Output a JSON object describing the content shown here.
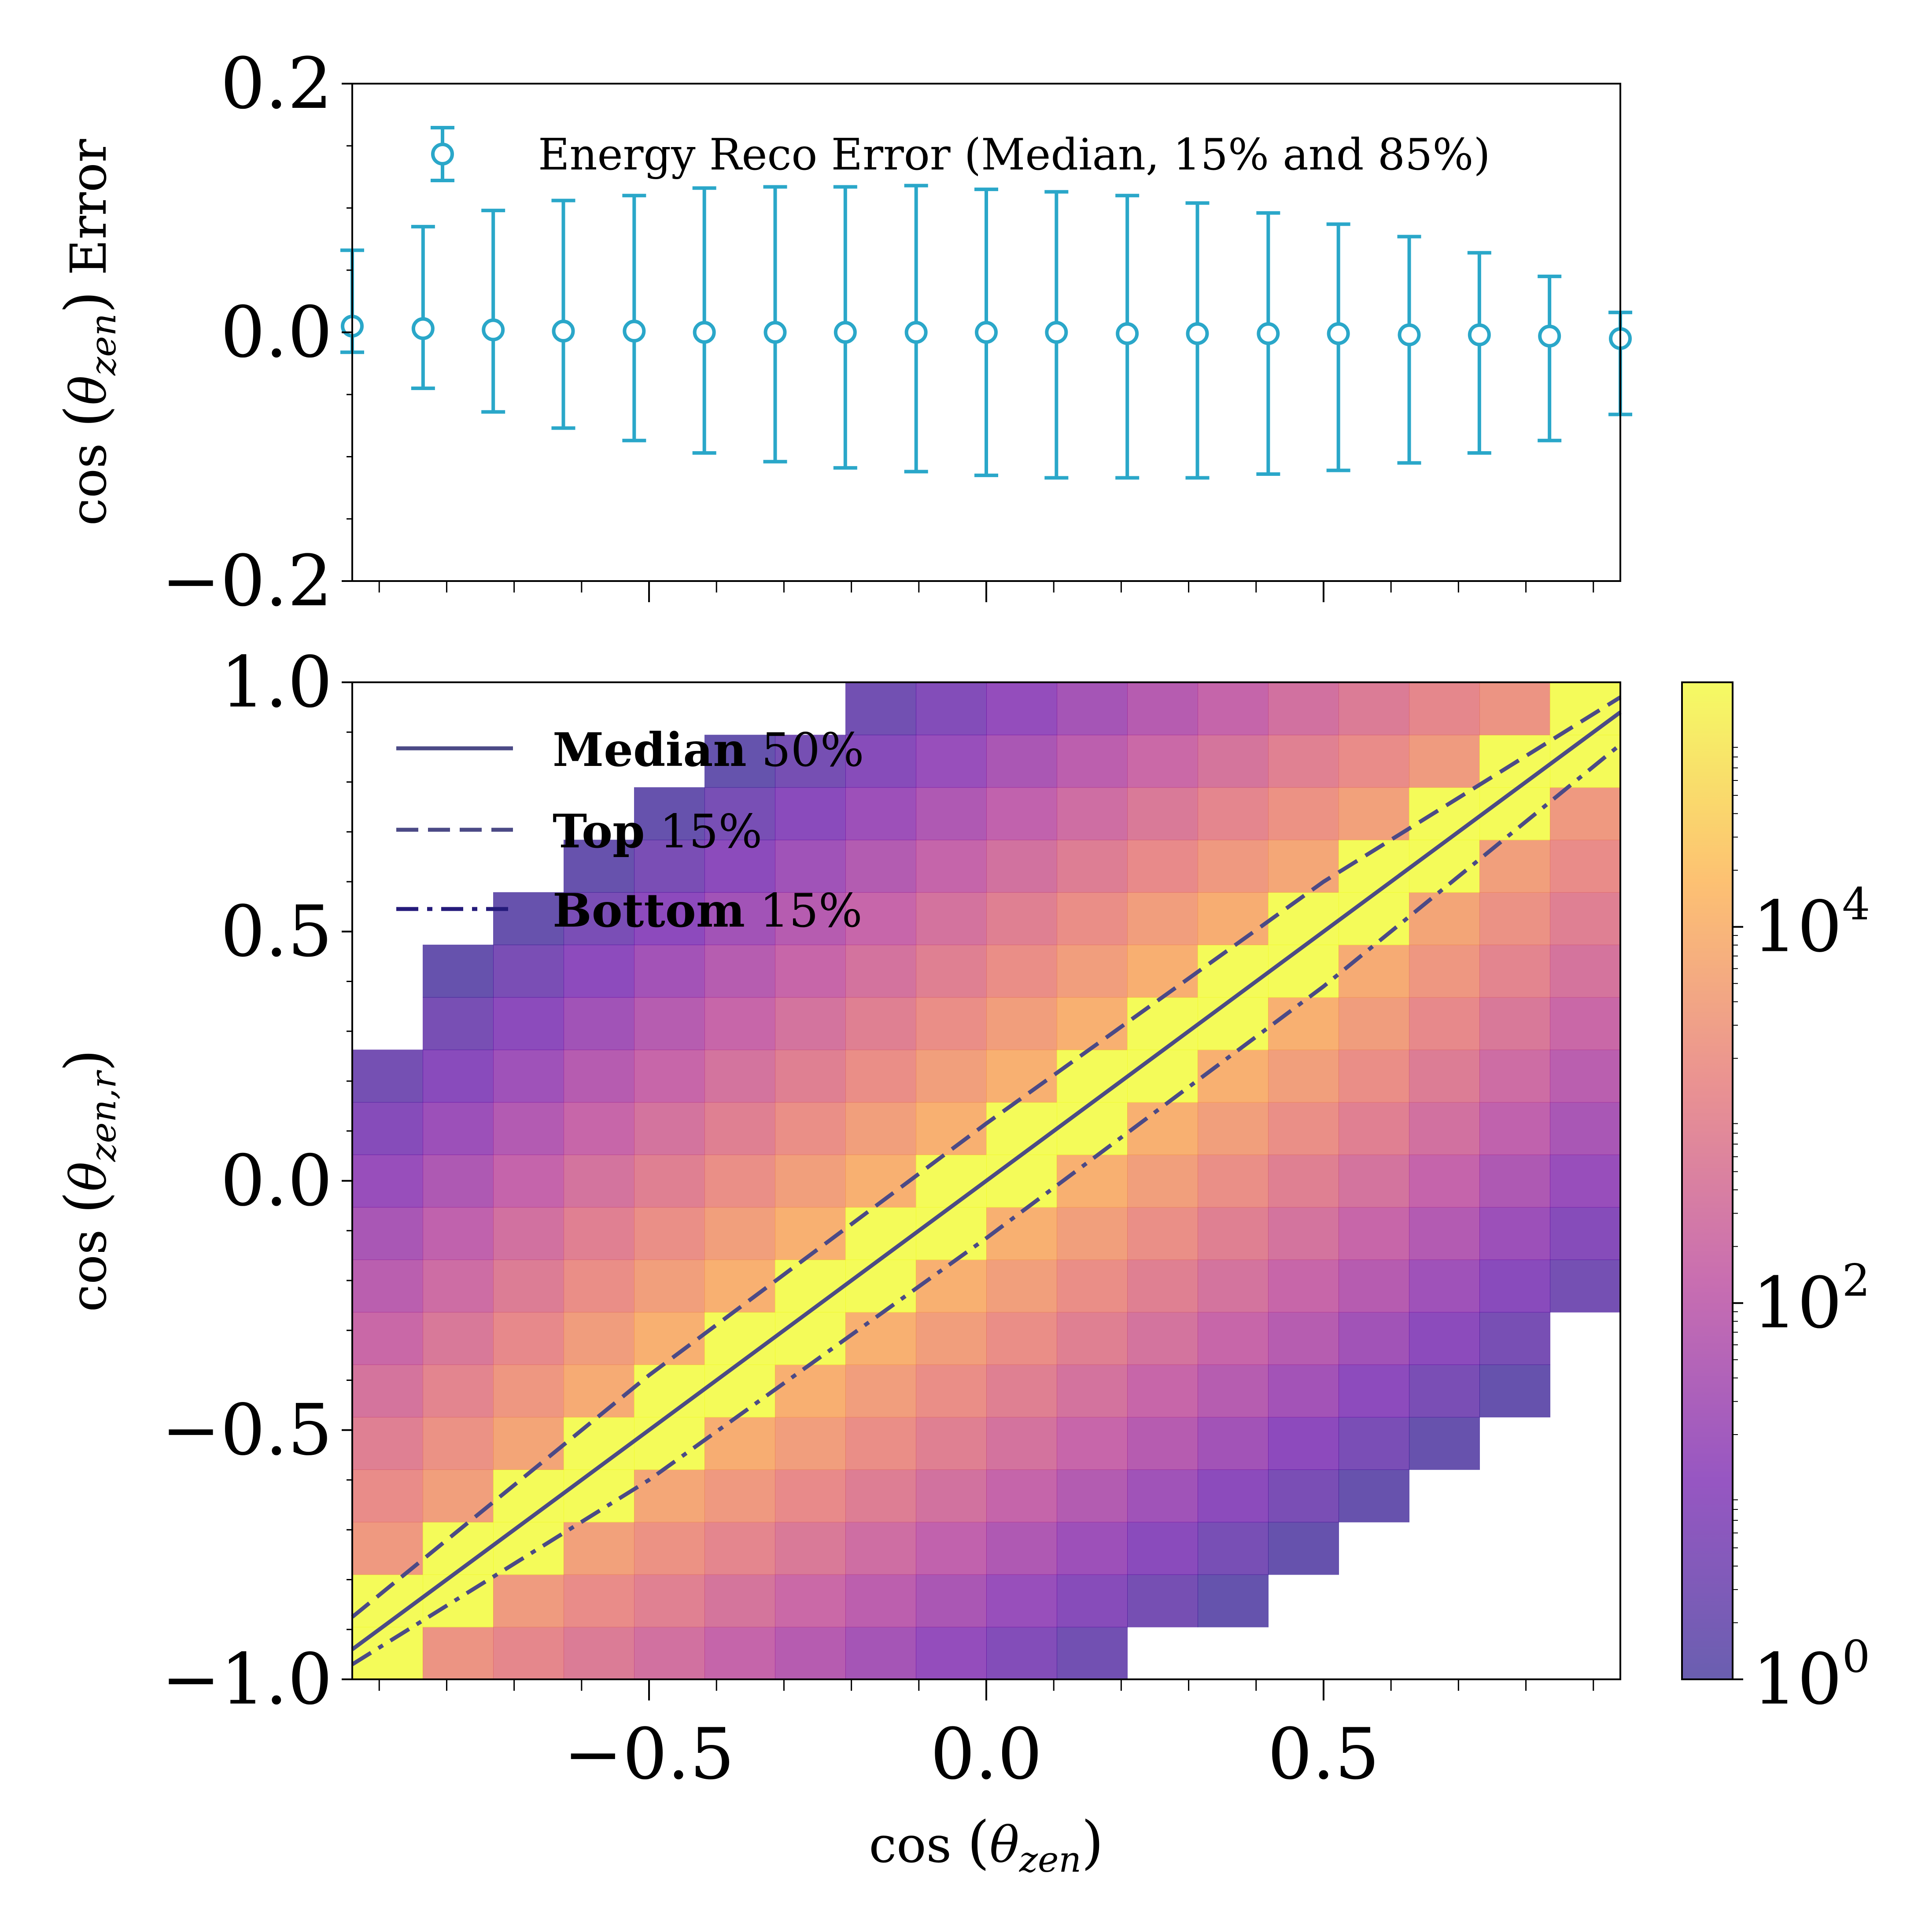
{
  "chart_data": [
    {
      "id": "error-panel",
      "type": "errorbar",
      "ylabel": "cos(θzen) Error",
      "ylabel_parts": {
        "prefix": "cos",
        "theta": "θ",
        "sub": "zen",
        "suffix": "Error"
      },
      "xlim": [
        -0.94,
        0.94
      ],
      "ylim": [
        -0.2,
        0.2
      ],
      "yticks": [
        {
          "value": 0.2,
          "label": "0.2"
        },
        {
          "value": 0.0,
          "label": "0.0"
        },
        {
          "value": -0.2,
          "label": "−0.2"
        }
      ],
      "legend": {
        "label": "Energy Reco Error (Median, 15% and 85%)",
        "location": "upper-center"
      },
      "color": "#2aa7c9",
      "series": [
        {
          "x": -0.94,
          "median": 0.005,
          "low": -0.016,
          "high": 0.066
        },
        {
          "x": -0.835,
          "median": 0.003,
          "low": -0.045,
          "high": 0.085
        },
        {
          "x": -0.731,
          "median": 0.002,
          "low": -0.064,
          "high": 0.098
        },
        {
          "x": -0.627,
          "median": 0.001,
          "low": -0.077,
          "high": 0.106
        },
        {
          "x": -0.522,
          "median": 0.001,
          "low": -0.087,
          "high": 0.11
        },
        {
          "x": -0.418,
          "median": 0.0,
          "low": -0.097,
          "high": 0.116
        },
        {
          "x": -0.313,
          "median": 0.0,
          "low": -0.104,
          "high": 0.117
        },
        {
          "x": -0.209,
          "median": 0.0,
          "low": -0.109,
          "high": 0.117
        },
        {
          "x": -0.104,
          "median": 0.0,
          "low": -0.112,
          "high": 0.118
        },
        {
          "x": 0.0,
          "median": 0.0,
          "low": -0.115,
          "high": 0.115
        },
        {
          "x": 0.104,
          "median": 0.0,
          "low": -0.117,
          "high": 0.113
        },
        {
          "x": 0.209,
          "median": -0.001,
          "low": -0.117,
          "high": 0.11
        },
        {
          "x": 0.313,
          "median": -0.001,
          "low": -0.117,
          "high": 0.104
        },
        {
          "x": 0.418,
          "median": -0.001,
          "low": -0.114,
          "high": 0.096
        },
        {
          "x": 0.522,
          "median": -0.001,
          "low": -0.111,
          "high": 0.087
        },
        {
          "x": 0.627,
          "median": -0.002,
          "low": -0.105,
          "high": 0.077
        },
        {
          "x": 0.731,
          "median": -0.002,
          "low": -0.097,
          "high": 0.064
        },
        {
          "x": 0.835,
          "median": -0.003,
          "low": -0.087,
          "high": 0.045
        },
        {
          "x": 0.94,
          "median": -0.005,
          "low": -0.066,
          "high": 0.016
        }
      ]
    },
    {
      "id": "heatmap-panel",
      "type": "heatmap",
      "xlabel": "cos(θzen)",
      "xlabel_parts": {
        "prefix": "cos",
        "theta": "θ",
        "sub": "zen"
      },
      "ylabel": "cos(θzen,r)",
      "ylabel_parts": {
        "prefix": "cos",
        "theta": "θ",
        "sub": "zen,r"
      },
      "xlim": [
        -0.94,
        0.94
      ],
      "ylim": [
        -1.0,
        1.0
      ],
      "xticks": [
        {
          "value": -0.5,
          "label": "−0.5"
        },
        {
          "value": 0.0,
          "label": "0.0"
        },
        {
          "value": 0.5,
          "label": "0.5"
        }
      ],
      "yticks": [
        {
          "value": 1.0,
          "label": "1.0"
        },
        {
          "value": 0.5,
          "label": "0.5"
        },
        {
          "value": 0.0,
          "label": "0.0"
        },
        {
          "value": -0.5,
          "label": "−0.5"
        },
        {
          "value": -1.0,
          "label": "−1.0"
        }
      ],
      "grid": {
        "x_bins": 18,
        "y_bins": 19
      },
      "colorscale": "log10 counts (plasma)",
      "colorbar": {
        "range_log10": [
          0,
          5.3
        ],
        "ticks": [
          {
            "value": 0,
            "label": "10",
            "exp": "0"
          },
          {
            "value": 2,
            "label": "10",
            "exp": "2"
          },
          {
            "value": 4,
            "label": "10",
            "exp": "4"
          }
        ]
      },
      "lines": [
        {
          "name": "Median",
          "suffix": "50%",
          "style": "solid",
          "points": [
            [
              -0.94,
              -0.94
            ],
            [
              0.94,
              0.94
            ]
          ]
        },
        {
          "name": "Top",
          "suffix": "15%",
          "style": "dashed",
          "points": [
            [
              -0.94,
              -0.875
            ],
            [
              -0.5,
              -0.39
            ],
            [
              0.0,
              0.115
            ],
            [
              0.5,
              0.6
            ],
            [
              0.94,
              0.97
            ]
          ]
        },
        {
          "name": "Bottom",
          "suffix": "15%",
          "style": "dashdot",
          "points": [
            [
              -0.94,
              -0.97
            ],
            [
              -0.5,
              -0.6
            ],
            [
              0.0,
              -0.115
            ],
            [
              0.5,
              0.39
            ],
            [
              0.94,
              0.875
            ]
          ]
        }
      ],
      "legend_location": "upper-left",
      "line_color": "#4b4a86"
    }
  ]
}
